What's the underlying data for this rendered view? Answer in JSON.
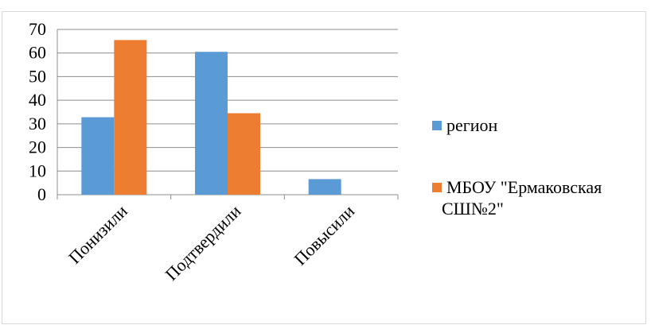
{
  "chart_data": {
    "type": "bar",
    "title": "",
    "xlabel": "",
    "ylabel": "",
    "categories": [
      "Понизили",
      "Подтвердили",
      "Повысили"
    ],
    "series": [
      {
        "name": "регион",
        "values": [
          32.8,
          60.5,
          6.6
        ],
        "color": "#5B9BD5"
      },
      {
        "name": "МБОУ \"Ермаковская СШ№2\"",
        "values": [
          65.5,
          34.5,
          0
        ],
        "color": "#ED7D31"
      }
    ],
    "ylim": [
      0,
      70
    ],
    "yticks": [
      0,
      10,
      20,
      30,
      40,
      50,
      60,
      70
    ],
    "grid": true,
    "legend_position": "right"
  }
}
